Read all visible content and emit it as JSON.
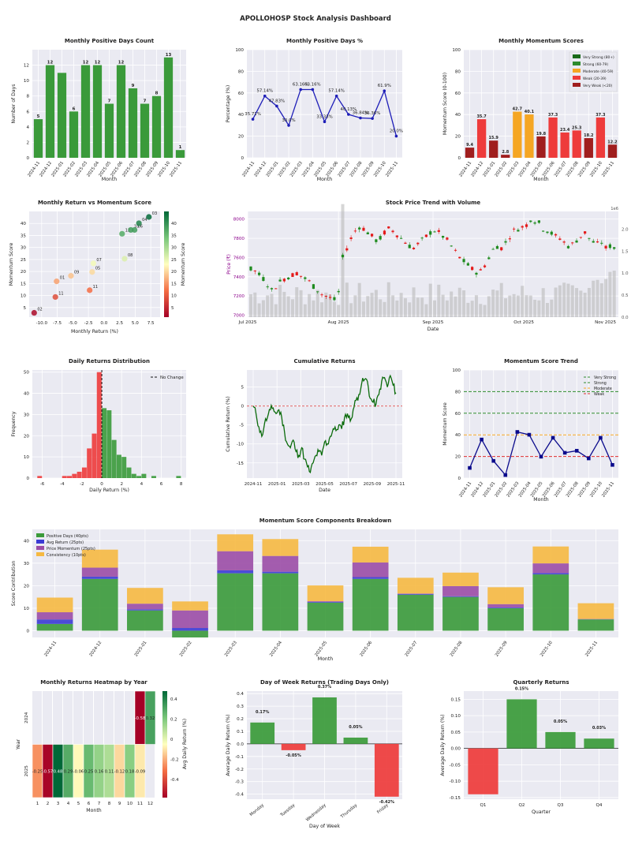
{
  "dashboard_title": "APOLLOHOSP Stock Analysis Dashboard",
  "colors": {
    "plot_bg": "#EAEAF2",
    "green": "#3A9A3A",
    "red": "#EE3B3B",
    "dark_red": "#A01E1E",
    "orange": "#F5A623",
    "navy": "#0A0A8C",
    "purple": "#9B4DA6",
    "blue": "#3A3AD4",
    "yellow": "#F6B941",
    "dark_green": "#1A6B1A",
    "cum_line": "#0B6B0B"
  },
  "chart_data": [
    {
      "id": "pos_days_count",
      "type": "bar",
      "title": "Monthly Positive Days Count",
      "xlabel": "Month",
      "ylabel": "Number of Days",
      "categories": [
        "2024-11",
        "2024-12",
        "2025-01",
        "2025-02",
        "2025-03",
        "2025-04",
        "2025-05",
        "2025-06",
        "2025-07",
        "2025-08",
        "2025-09",
        "2025-10",
        "2025-11"
      ],
      "values": [
        5,
        12,
        11,
        6,
        12,
        12,
        7,
        12,
        9,
        7,
        8,
        13,
        1
      ],
      "data_labels": [
        "5",
        "12",
        "",
        "6",
        "12",
        "12",
        "7",
        "12",
        "9",
        "7",
        "8",
        "13",
        "1"
      ],
      "ylim": [
        0,
        14
      ],
      "yticks": [
        0,
        2,
        4,
        6,
        8,
        10,
        12
      ]
    },
    {
      "id": "pos_days_pct",
      "type": "line",
      "title": "Monthly Positive Days %",
      "xlabel": "Month",
      "ylabel": "Percentage (%)",
      "categories": [
        "2024-11",
        "2024-12",
        "2025-01",
        "2025-02",
        "2025-03",
        "2025-04",
        "2025-05",
        "2025-06",
        "2025-07",
        "2025-08",
        "2025-09",
        "2025-10",
        "2025-11"
      ],
      "values": [
        35.71,
        57.14,
        47.83,
        30.0,
        63.16,
        63.16,
        33.33,
        57.14,
        40.13,
        36.84,
        36.36,
        61.9,
        20.0
      ],
      "data_labels": [
        "35.71%",
        "57.14%",
        "47.83%",
        "30.0%",
        "63.16%",
        "63.16%",
        "33.33%",
        "57.14%",
        "40.13%",
        "36.84%",
        "36.36%",
        "61.9%",
        "20.0%"
      ],
      "ylim": [
        0,
        100
      ],
      "yticks": [
        0,
        20,
        40,
        60,
        80,
        100
      ]
    },
    {
      "id": "momentum_scores",
      "type": "bar",
      "title": "Monthly Momentum Scores",
      "xlabel": "Month",
      "ylabel": "Momentum Score (0-100)",
      "categories": [
        "2024-11",
        "2024-12",
        "2025-01",
        "2025-02",
        "2025-03",
        "2025-04",
        "2025-05",
        "2025-06",
        "2025-07",
        "2025-08",
        "2025-09",
        "2025-10",
        "2025-11"
      ],
      "values": [
        9.4,
        35.7,
        15.9,
        2.8,
        42.7,
        40.1,
        19.8,
        37.3,
        23.4,
        25.3,
        18.2,
        37.3,
        12.2
      ],
      "data_labels": [
        "9.4",
        "35.7",
        "15.9",
        "2.8",
        "42.7",
        "40.1",
        "19.8",
        "37.3",
        "23.4",
        "25.3",
        "18.2",
        "37.3",
        "12.2"
      ],
      "ylim": [
        0,
        100
      ],
      "yticks": [
        0,
        20,
        40,
        60,
        80,
        100
      ],
      "legend": [
        "Very Strong (80+)",
        "Strong (60-79)",
        "Moderate (40-59)",
        "Weak (20-39)",
        "Very Weak (<20)"
      ]
    },
    {
      "id": "return_vs_momentum",
      "type": "scatter",
      "title": "Monthly Return vs Momentum Score",
      "xlabel": "Monthly Return (%)",
      "ylabel": "Momentum Score",
      "colorbar_label": "Momentum Score",
      "colorbar_ticks": [
        5,
        10,
        15,
        20,
        25,
        30,
        35,
        40
      ],
      "xlim": [
        -12,
        9
      ],
      "ylim": [
        1,
        45
      ],
      "xticks": [
        -10.0,
        -7.5,
        -5.0,
        -2.5,
        0.0,
        2.5,
        5.0,
        7.5
      ],
      "yticks": [
        5,
        10,
        15,
        20,
        25,
        30,
        35,
        40
      ],
      "points": [
        {
          "x": -11.2,
          "y": 2.8,
          "label": "02"
        },
        {
          "x": -7.6,
          "y": 15.9,
          "label": "01"
        },
        {
          "x": -7.8,
          "y": 9.4,
          "label": "11"
        },
        {
          "x": -5.3,
          "y": 18.2,
          "label": "09"
        },
        {
          "x": -2.3,
          "y": 12.2,
          "label": "11"
        },
        {
          "x": -1.7,
          "y": 23.4,
          "label": "07"
        },
        {
          "x": -1.9,
          "y": 19.8,
          "label": "05"
        },
        {
          "x": 3.3,
          "y": 25.3,
          "label": "08"
        },
        {
          "x": 2.9,
          "y": 35.7,
          "label": "12"
        },
        {
          "x": 4.3,
          "y": 37.3,
          "label": "10"
        },
        {
          "x": 4.9,
          "y": 37.3,
          "label": "06"
        },
        {
          "x": 5.6,
          "y": 40.1,
          "label": "04"
        },
        {
          "x": 7.2,
          "y": 42.7,
          "label": "03"
        }
      ]
    },
    {
      "id": "price_volume",
      "type": "candlestick",
      "title": "Stock Price Trend with Volume",
      "xlabel": "Date",
      "ylabel": "Price (₹)",
      "y2label": "Volume",
      "y2_multiplier": "1e6",
      "xticks": [
        "Jul 2025",
        "Aug 2025",
        "Sep 2025",
        "Oct 2025",
        "Nov 2025"
      ],
      "yticks": [
        7000,
        7200,
        7400,
        7600,
        7800,
        8000
      ],
      "y2ticks": [
        "0.0",
        "0.5",
        "1.0",
        "1.5",
        "2.0"
      ],
      "ylim": [
        6980,
        8080
      ],
      "y2lim": [
        0,
        2.4
      ]
    },
    {
      "id": "returns_distribution",
      "type": "histogram",
      "title": "Daily Returns Distribution",
      "xlabel": "Daily Return (%)",
      "ylabel": "Frequency",
      "legend": [
        "No Change"
      ],
      "xlim": [
        -7,
        8.5
      ],
      "ylim": [
        0,
        51
      ],
      "xticks": [
        -6,
        -4,
        -2,
        0,
        2,
        4,
        6,
        8
      ],
      "yticks": [
        0,
        10,
        20,
        30,
        40,
        50
      ],
      "bin_width": 0.5,
      "negative_bins": [
        {
          "x0": -6.5,
          "count": 1
        },
        {
          "x0": -4.0,
          "count": 1
        },
        {
          "x0": -3.5,
          "count": 1
        },
        {
          "x0": -3.0,
          "count": 2
        },
        {
          "x0": -2.5,
          "count": 3
        },
        {
          "x0": -2.0,
          "count": 5
        },
        {
          "x0": -1.5,
          "count": 14
        },
        {
          "x0": -1.0,
          "count": 21
        },
        {
          "x0": -0.5,
          "count": 50
        }
      ],
      "positive_bins": [
        {
          "x0": 0.0,
          "count": 33
        },
        {
          "x0": 0.5,
          "count": 32
        },
        {
          "x0": 1.0,
          "count": 18
        },
        {
          "x0": 1.5,
          "count": 11
        },
        {
          "x0": 2.0,
          "count": 10
        },
        {
          "x0": 2.5,
          "count": 5
        },
        {
          "x0": 3.0,
          "count": 2
        },
        {
          "x0": 3.5,
          "count": 1
        },
        {
          "x0": 4.0,
          "count": 2
        },
        {
          "x0": 5.0,
          "count": 1
        },
        {
          "x0": 7.5,
          "count": 1
        }
      ]
    },
    {
      "id": "cumulative_returns",
      "type": "line",
      "title": "Cumulative Returns",
      "xlabel": "Date",
      "ylabel": "Cumulative Return (%)",
      "xticks": [
        "2024-11",
        "2025-01",
        "2025-03",
        "2025-05",
        "2025-07",
        "2025-09",
        "2025-11"
      ],
      "yticks": [
        -15,
        -10,
        -5,
        0,
        5
      ],
      "ylim": [
        -19,
        9.5
      ],
      "points": [
        [
          0,
          0
        ],
        [
          0.02,
          -2
        ],
        [
          0.04,
          -5.5
        ],
        [
          0.06,
          -8
        ],
        [
          0.08,
          -4.5
        ],
        [
          0.1,
          -3
        ],
        [
          0.12,
          -1
        ],
        [
          0.14,
          -0.5
        ],
        [
          0.16,
          -2
        ],
        [
          0.18,
          -1
        ],
        [
          0.2,
          -3
        ],
        [
          0.22,
          -7
        ],
        [
          0.24,
          -10
        ],
        [
          0.26,
          -11
        ],
        [
          0.28,
          -9
        ],
        [
          0.3,
          -12
        ],
        [
          0.32,
          -13
        ],
        [
          0.34,
          -11
        ],
        [
          0.36,
          -14
        ],
        [
          0.38,
          -16
        ],
        [
          0.4,
          -17.5
        ],
        [
          0.42,
          -15
        ],
        [
          0.44,
          -13
        ],
        [
          0.46,
          -12
        ],
        [
          0.48,
          -13
        ],
        [
          0.5,
          -9.5
        ],
        [
          0.52,
          -10
        ],
        [
          0.54,
          -8
        ],
        [
          0.56,
          -6
        ],
        [
          0.58,
          -6.5
        ],
        [
          0.6,
          -5
        ],
        [
          0.62,
          -6
        ],
        [
          0.64,
          -3
        ],
        [
          0.66,
          -2
        ],
        [
          0.68,
          -4
        ],
        [
          0.7,
          -1
        ],
        [
          0.72,
          1.5
        ],
        [
          0.74,
          3
        ],
        [
          0.76,
          6
        ],
        [
          0.78,
          7
        ],
        [
          0.8,
          6.5
        ],
        [
          0.82,
          2
        ],
        [
          0.84,
          1
        ],
        [
          0.86,
          0.5
        ],
        [
          0.88,
          3
        ],
        [
          0.9,
          6.5
        ],
        [
          0.92,
          7.5
        ],
        [
          0.94,
          5
        ],
        [
          0.96,
          8
        ],
        [
          0.98,
          5.5
        ],
        [
          1.0,
          3.5
        ]
      ]
    },
    {
      "id": "momentum_trend",
      "type": "line",
      "title": "Momentum Score Trend",
      "xlabel": "Month",
      "ylabel": "Momentum Score",
      "categories": [
        "2024-11",
        "2024-12",
        "2025-01",
        "2025-02",
        "2025-03",
        "2025-04",
        "2025-05",
        "2025-06",
        "2025-07",
        "2025-08",
        "2025-09",
        "2025-10",
        "2025-11"
      ],
      "values": [
        9.4,
        35.7,
        15.9,
        2.8,
        42.7,
        40.1,
        19.8,
        37.3,
        23.4,
        25.3,
        18.2,
        37.3,
        12.2
      ],
      "ylim": [
        0,
        100
      ],
      "yticks": [
        0,
        20,
        40,
        60,
        80,
        100
      ],
      "thresholds": [
        {
          "name": "Very Strong",
          "value": 80
        },
        {
          "name": "Strong",
          "value": 60
        },
        {
          "name": "Moderate",
          "value": 40
        },
        {
          "name": "Weak",
          "value": 20
        }
      ]
    },
    {
      "id": "components",
      "type": "bar",
      "title": "Momentum Score Components Breakdown",
      "xlabel": "Month",
      "ylabel": "Score Contribution",
      "categories": [
        "2024-11",
        "2024-12",
        "2025-01",
        "2025-02",
        "2025-03",
        "2025-04",
        "2025-05",
        "2025-06",
        "2025-07",
        "2025-08",
        "2025-09",
        "2025-10",
        "2025-11"
      ],
      "ylim": [
        -3,
        45
      ],
      "yticks": [
        0,
        10,
        20,
        30,
        40
      ],
      "series": [
        {
          "name": "Positive Days (40pts)",
          "values": [
            3,
            23,
            9,
            -3,
            25.5,
            25.5,
            12.5,
            23,
            16,
            15,
            10,
            25,
            5
          ]
        },
        {
          "name": "Avg Return (25pts)",
          "values": [
            2,
            1,
            0.5,
            1.2,
            1.3,
            0.7,
            0.3,
            0.8,
            0.3,
            0.3,
            0.3,
            0.6,
            0.1
          ]
        },
        {
          "name": "Price Momentum (25pts)",
          "values": [
            3.2,
            4,
            2.5,
            7.8,
            8.5,
            7,
            0.3,
            6.5,
            0.2,
            4.5,
            1.5,
            4.3,
            0.1
          ]
        },
        {
          "name": "Consistency (10pts)",
          "values": [
            6.5,
            8,
            7,
            4,
            7.5,
            7.5,
            7,
            7,
            7,
            6,
            7.5,
            7.5,
            7
          ]
        }
      ]
    },
    {
      "id": "monthly_heatmap",
      "type": "heatmap",
      "title": "Monthly Returns Heatmap by Year",
      "xlabel": "Month",
      "ylabel": "Year",
      "colorbar_label": "Avg Daily Return (%)",
      "colorbar_ticks": [
        -0.4,
        -0.2,
        0.0,
        0.2,
        0.4
      ],
      "vmin": -0.58,
      "vmax": 0.48,
      "columns": [
        1,
        2,
        3,
        4,
        5,
        6,
        7,
        8,
        9,
        10,
        11,
        12
      ],
      "rows": [
        {
          "year": "2024",
          "values": [
            null,
            null,
            null,
            null,
            null,
            null,
            null,
            null,
            null,
            null,
            -0.58,
            0.32
          ],
          "labels": [
            "",
            "",
            "",
            "",
            "",
            "",
            "",
            "",
            "",
            "",
            "-0.58",
            "0.32"
          ]
        },
        {
          "year": "2025",
          "values": [
            -0.25,
            -0.57,
            0.48,
            0.29,
            -0.06,
            0.25,
            0.16,
            0.11,
            -0.12,
            0.18,
            -0.09,
            null
          ],
          "labels": [
            "-0.25",
            "-0.57",
            "0.48",
            "0.29",
            "-0.06",
            "0.25",
            "0.16",
            "0.11",
            "-0.12",
            "0.18",
            "-0.09",
            ""
          ]
        }
      ]
    },
    {
      "id": "dow_returns",
      "type": "bar",
      "title": "Day of Week Returns (Trading Days Only)",
      "xlabel": "Day of Week",
      "ylabel": "Average Daily Return (%)",
      "categories": [
        "Monday",
        "Tuesday",
        "Wednesday",
        "Thursday",
        "Friday"
      ],
      "values": [
        0.17,
        -0.05,
        0.37,
        0.05,
        -0.42
      ],
      "data_labels": [
        "0.17%",
        "-0.05%",
        "0.37%",
        "0.05%",
        "-0.42%"
      ],
      "ylim": [
        -0.44,
        0.42
      ],
      "yticks": [
        -0.4,
        -0.3,
        -0.2,
        -0.1,
        0.0,
        0.1,
        0.2,
        0.3,
        0.4
      ]
    },
    {
      "id": "quarterly_returns",
      "type": "bar",
      "title": "Quarterly Returns",
      "xlabel": "Quarter",
      "ylabel": "Average Daily Return (%)",
      "categories": [
        "Q1",
        "Q2",
        "Q3",
        "Q4"
      ],
      "values": [
        -0.14,
        0.15,
        0.05,
        0.03
      ],
      "data_labels": [
        "",
        "0.15%",
        "0.05%",
        "0.03%"
      ],
      "ylim": [
        -0.155,
        0.175
      ],
      "yticks": [
        -0.15,
        -0.1,
        -0.05,
        0.0,
        0.05,
        0.1,
        0.15
      ]
    }
  ]
}
